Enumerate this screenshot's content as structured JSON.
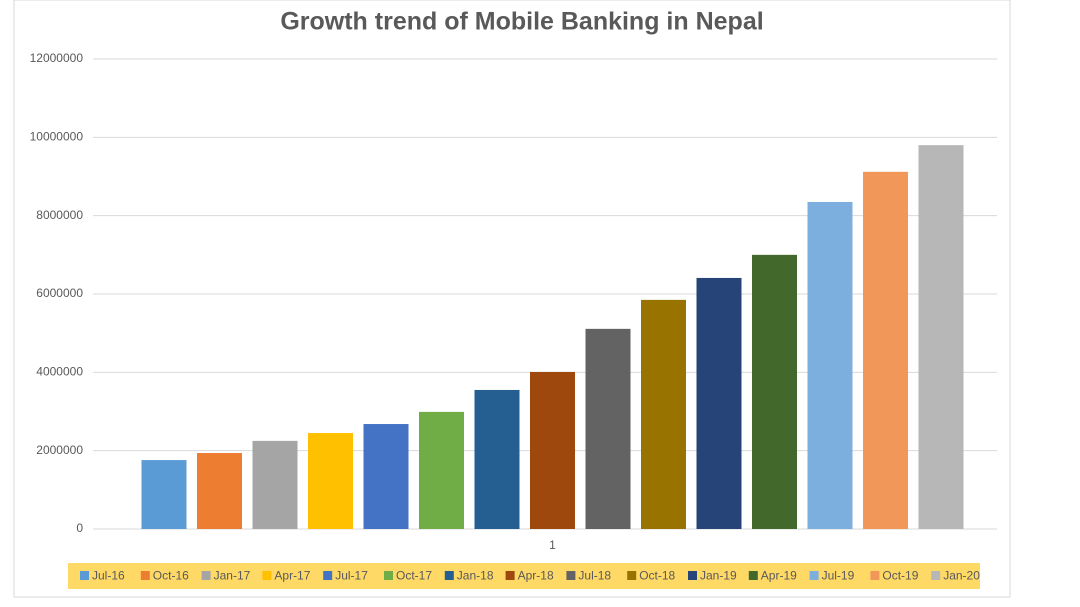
{
  "chart_data": {
    "type": "bar",
    "title": "Growth trend of Mobile Banking in Nepal",
    "categories": [
      "1"
    ],
    "series": [
      {
        "name": "Jul-16",
        "color": "#5b9bd5",
        "values": [
          1760000
        ]
      },
      {
        "name": "Oct-16",
        "color": "#ed7d31",
        "values": [
          1940000
        ]
      },
      {
        "name": "Jan-17",
        "color": "#a5a5a5",
        "values": [
          2250000
        ]
      },
      {
        "name": "Apr-17",
        "color": "#ffc000",
        "values": [
          2450000
        ]
      },
      {
        "name": "Jul-17",
        "color": "#4472c4",
        "values": [
          2680000
        ]
      },
      {
        "name": "Oct-17",
        "color": "#70ad47",
        "values": [
          2990000
        ]
      },
      {
        "name": "Jan-18",
        "color": "#255e91",
        "values": [
          3550000
        ]
      },
      {
        "name": "Apr-18",
        "color": "#9e480e",
        "values": [
          4010000
        ]
      },
      {
        "name": "Jul-18",
        "color": "#636363",
        "values": [
          5110000
        ]
      },
      {
        "name": "Oct-18",
        "color": "#997300",
        "values": [
          5850000
        ]
      },
      {
        "name": "Jan-19",
        "color": "#264478",
        "values": [
          6410000
        ]
      },
      {
        "name": "Apr-19",
        "color": "#43682b",
        "values": [
          7000000
        ]
      },
      {
        "name": "Jul-19",
        "color": "#7cafdd",
        "values": [
          8350000
        ]
      },
      {
        "name": "Oct-19",
        "color": "#f1975a",
        "values": [
          9120000
        ]
      },
      {
        "name": "Jan-20",
        "color": "#b7b7b7",
        "values": [
          9800000
        ]
      }
    ],
    "ylim": [
      0,
      12000000
    ],
    "yticks": [
      0,
      2000000,
      4000000,
      6000000,
      8000000,
      10000000,
      12000000
    ],
    "grid": true,
    "legend": "bottom",
    "legend_background": "#ffd966"
  }
}
